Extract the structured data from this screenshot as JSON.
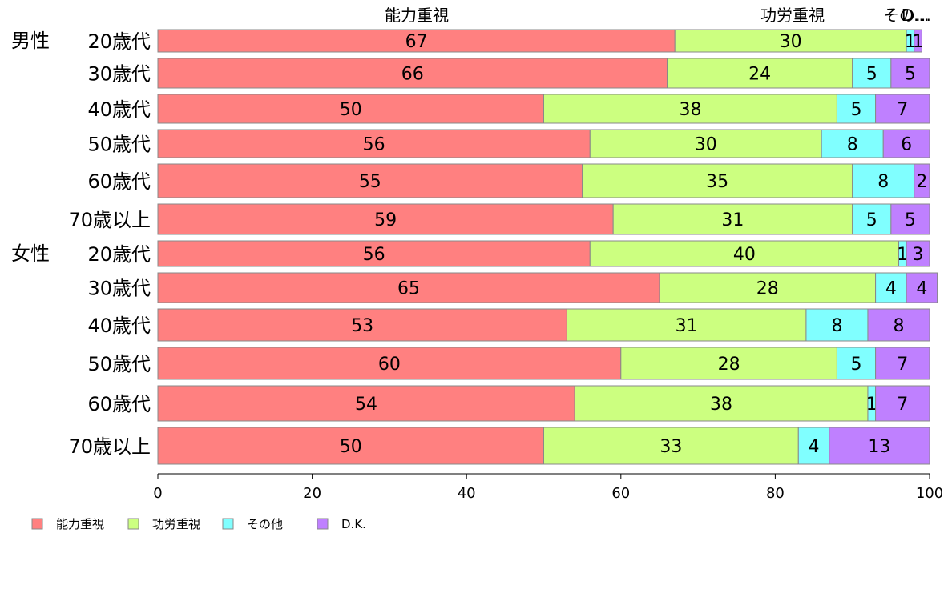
{
  "chart_data": {
    "type": "bar",
    "orientation": "horizontal",
    "stacked": true,
    "x_ticks": [
      "0",
      "20",
      "40",
      "60",
      "80",
      "100"
    ],
    "xlim": [
      0,
      100
    ],
    "grid": false,
    "legend_position": "bottom-left",
    "top_labels": [
      "能力重視",
      "功労重視",
      "その…",
      "D..."
    ],
    "groups": [
      {
        "label": "男性",
        "rows": [
          0
        ]
      },
      {
        "label": "女性",
        "rows": [
          6
        ]
      }
    ],
    "categories": [
      "20歳代",
      "30歳代",
      "40歳代",
      "50歳代",
      "60歳代",
      "70歳以上",
      "20歳代",
      "30歳代",
      "40歳代",
      "50歳代",
      "60歳代",
      "70歳以上"
    ],
    "series": [
      {
        "name": "能力重視",
        "color": "#ff8080",
        "values": [
          67,
          66,
          50,
          56,
          55,
          59,
          56,
          65,
          53,
          60,
          54,
          50
        ]
      },
      {
        "name": "功労重視",
        "color": "#ccff80",
        "values": [
          30,
          24,
          38,
          30,
          35,
          31,
          40,
          28,
          31,
          28,
          38,
          33
        ]
      },
      {
        "name": "その他",
        "color": "#80ffff",
        "values": [
          1,
          5,
          5,
          8,
          8,
          5,
          1,
          4,
          8,
          5,
          1,
          4
        ]
      },
      {
        "name": "D.K.",
        "color": "#bf80ff",
        "values": [
          1,
          5,
          7,
          6,
          2,
          5,
          3,
          4,
          8,
          7,
          7,
          13
        ]
      }
    ],
    "bar_value_labels": [
      [
        "67",
        "30",
        "1",
        "1"
      ],
      [
        "66",
        "24",
        "5",
        "5"
      ],
      [
        "50",
        "38",
        "5",
        "7"
      ],
      [
        "56",
        "30",
        "8",
        "6"
      ],
      [
        "55",
        "35",
        "8",
        "2"
      ],
      [
        "59",
        "31",
        "5",
        "5"
      ],
      [
        "56",
        "40",
        "1",
        "3"
      ],
      [
        "65",
        "28",
        "4",
        "4"
      ],
      [
        "53",
        "31",
        "8",
        "8"
      ],
      [
        "60",
        "28",
        "5",
        "7"
      ],
      [
        "54",
        "38",
        "1",
        "7"
      ],
      [
        "50",
        "33",
        "4",
        "13"
      ]
    ]
  }
}
